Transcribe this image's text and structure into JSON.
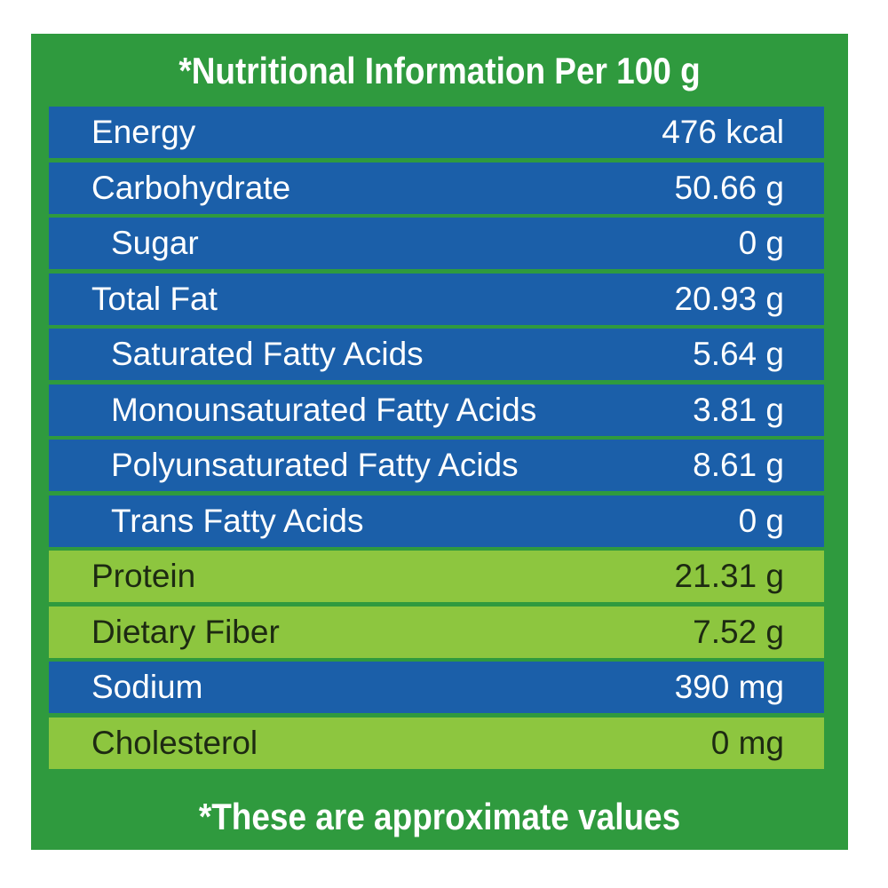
{
  "header": {
    "title": "*Nutritional Information Per 100 g"
  },
  "table": {
    "rows": [
      [
        "Energy",
        "476 kcal"
      ],
      [
        "Carbohydrate",
        "50.66 g"
      ],
      [
        "Sugar",
        "0 g"
      ],
      [
        "Total Fat",
        "20.93 g"
      ],
      [
        "Saturated Fatty Acids",
        "5.64 g"
      ],
      [
        "Monounsaturated Fatty Acids",
        "3.81 g"
      ],
      [
        "Polyunsaturated Fatty Acids",
        "8.61 g"
      ],
      [
        "Trans Fatty Acids",
        "0 g"
      ],
      [
        "Protein",
        "21.31 g"
      ],
      [
        "Dietary Fiber",
        "7.52 g"
      ],
      [
        "Sodium",
        "390 mg"
      ],
      [
        "Cholesterol",
        "0 mg"
      ]
    ]
  },
  "footer": {
    "note": "*These are approximate values"
  }
}
